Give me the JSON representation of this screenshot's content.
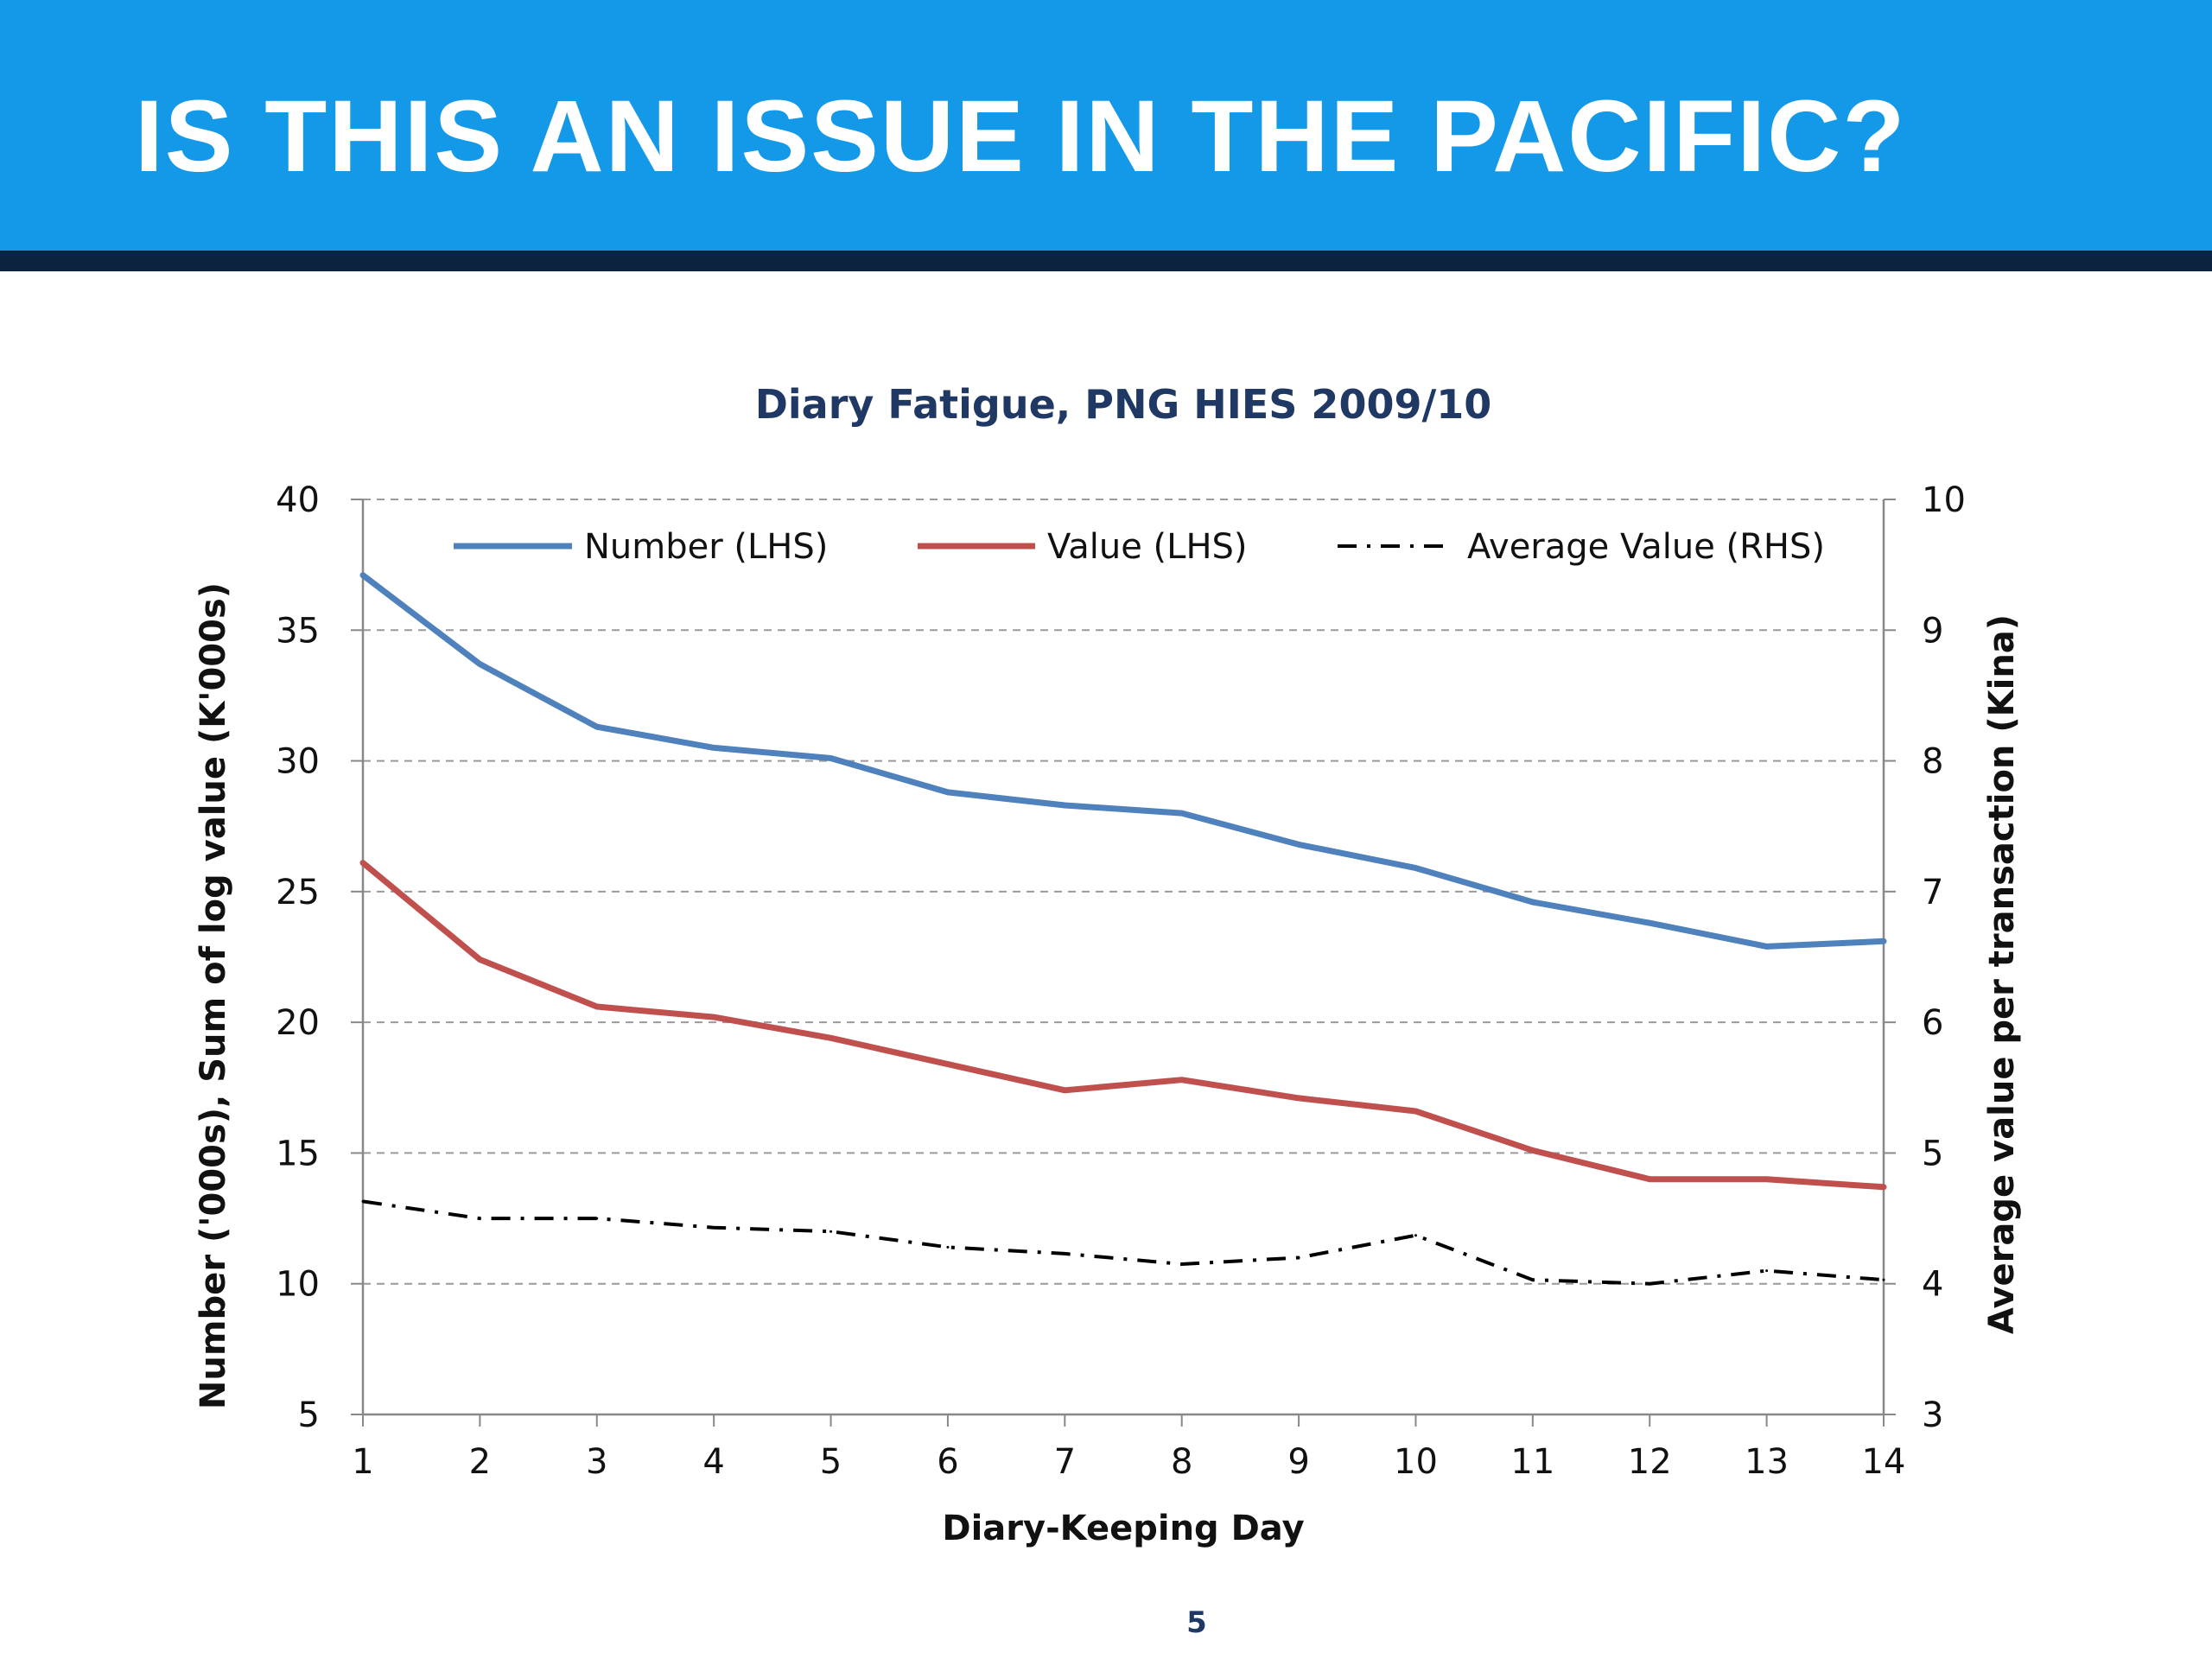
{
  "slide": {
    "title": "IS THIS AN ISSUE IN THE PACIFIC?",
    "page_number": "5",
    "colors": {
      "header": "#1499e8",
      "header_bar": "#0c2340",
      "title_text": "#ffffff"
    }
  },
  "chart_data": {
    "type": "line",
    "title": "Diary Fatigue, PNG HIES 2009/10",
    "xlabel": "Diary-Keeping Day",
    "ylabel": "Number ('000s), Sum of log value (K'000s)",
    "y2label": "Average value per transaction (Kina)",
    "x": [
      1,
      2,
      3,
      4,
      5,
      6,
      7,
      8,
      9,
      10,
      11,
      12,
      13,
      14
    ],
    "xticks": [
      "1",
      "2",
      "3",
      "4",
      "5",
      "6",
      "7",
      "8",
      "9",
      "10",
      "11",
      "12",
      "13",
      "14"
    ],
    "ylim": [
      5,
      40
    ],
    "yticks": [
      "5",
      "10",
      "15",
      "20",
      "25",
      "30",
      "35",
      "40"
    ],
    "y2lim": [
      3,
      10
    ],
    "y2ticks": [
      "3",
      "4",
      "5",
      "6",
      "7",
      "8",
      "9",
      "10"
    ],
    "grid": "horizontal dashed",
    "legend_position": "top",
    "series": [
      {
        "name": "Number (LHS)",
        "axis": "left",
        "color": "#4f81bd",
        "style": "solid",
        "values": [
          37.1,
          33.7,
          31.3,
          30.5,
          30.1,
          28.8,
          28.3,
          28.0,
          26.8,
          25.9,
          24.6,
          23.8,
          22.9,
          23.1
        ]
      },
      {
        "name": "Value (LHS)",
        "axis": "left",
        "color": "#c0504d",
        "style": "solid",
        "values": [
          26.1,
          22.4,
          20.6,
          20.2,
          19.4,
          18.4,
          17.4,
          17.8,
          17.1,
          16.6,
          15.1,
          14.0,
          14.0,
          13.7
        ]
      },
      {
        "name": "Average Value (RHS)",
        "axis": "right",
        "color": "#000000",
        "style": "dash-dot",
        "values": [
          4.63,
          4.5,
          4.5,
          4.43,
          4.4,
          4.28,
          4.23,
          4.15,
          4.2,
          4.37,
          4.03,
          4.0,
          4.1,
          4.03
        ]
      }
    ]
  }
}
